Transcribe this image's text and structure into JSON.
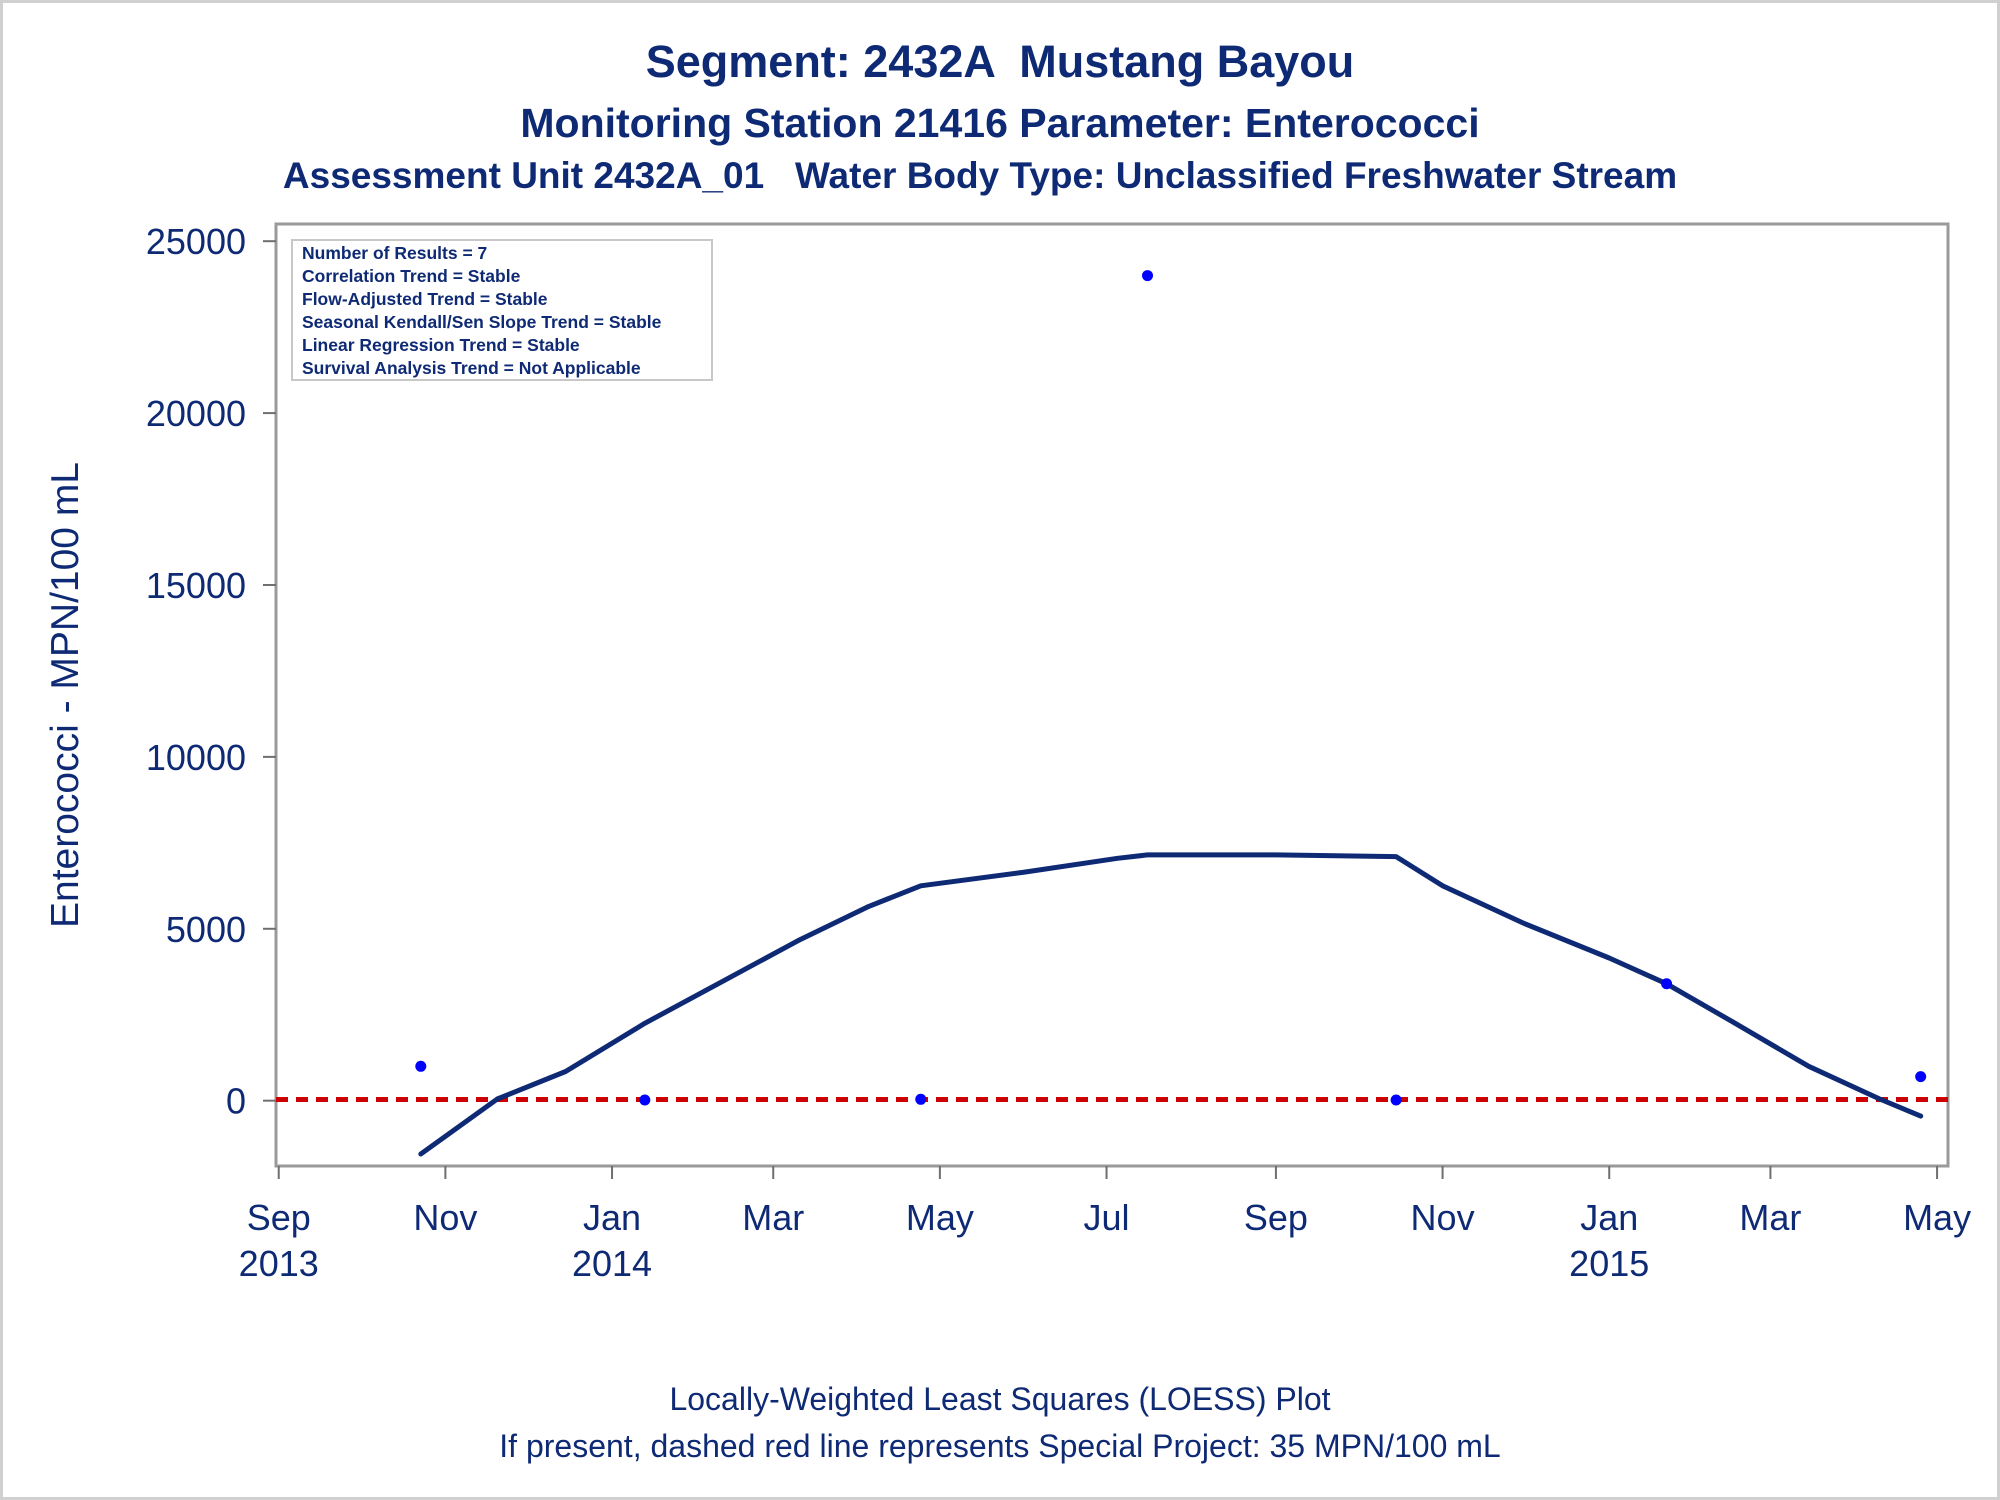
{
  "titles": {
    "line1": "Segment: 2432A  Mustang Bayou",
    "line2": "Monitoring Station 21416 Parameter: Enterococci",
    "line3": "Assessment Unit 2432A_01   Water Body Type: Unclassified Freshwater Stream"
  },
  "footnotes": {
    "line1": "Locally-Weighted Least Squares (LOESS) Plot",
    "line2": "If present, dashed red line represents Special Project: 35 MPN/100 mL"
  },
  "chart_data": {
    "type": "scatter",
    "title": "Segment: 2432A  Mustang Bayou",
    "ylabel": "Enterococci - MPN/100 mL",
    "xlabel": "",
    "ylim": [
      -1900,
      25500
    ],
    "xlim": [
      "2013-08-31",
      "2015-05-05"
    ],
    "yticks": [
      0,
      5000,
      10000,
      15000,
      20000,
      25000
    ],
    "xticks": [
      {
        "date": "2013-09-01",
        "label": "Sep",
        "sublabel": "2013"
      },
      {
        "date": "2013-11-01",
        "label": "Nov",
        "sublabel": ""
      },
      {
        "date": "2014-01-01",
        "label": "Jan",
        "sublabel": "2014"
      },
      {
        "date": "2014-03-01",
        "label": "Mar",
        "sublabel": ""
      },
      {
        "date": "2014-05-01",
        "label": "May",
        "sublabel": ""
      },
      {
        "date": "2014-07-01",
        "label": "Jul",
        "sublabel": ""
      },
      {
        "date": "2014-09-01",
        "label": "Sep",
        "sublabel": ""
      },
      {
        "date": "2014-11-01",
        "label": "Nov",
        "sublabel": ""
      },
      {
        "date": "2015-01-01",
        "label": "Jan",
        "sublabel": "2015"
      },
      {
        "date": "2015-03-01",
        "label": "Mar",
        "sublabel": ""
      },
      {
        "date": "2015-05-01",
        "label": "May",
        "sublabel": ""
      }
    ],
    "grid": false,
    "stats_box": [
      "Number of Results = 7",
      "Correlation Trend = Stable",
      "Flow-Adjusted Trend = Stable",
      "Seasonal Kendall/Sen Slope Trend = Stable",
      "Linear Regression Trend = Stable",
      "Survival Analysis Trend = Not Applicable"
    ],
    "series": [
      {
        "kind": "points",
        "color": "#0000ff",
        "points": [
          {
            "x": "2013-10-23",
            "y": 1000
          },
          {
            "x": "2014-01-13",
            "y": 20
          },
          {
            "x": "2014-04-24",
            "y": 40
          },
          {
            "x": "2014-07-16",
            "y": 24000
          },
          {
            "x": "2014-10-15",
            "y": 20
          },
          {
            "x": "2015-01-22",
            "y": 3400
          },
          {
            "x": "2015-04-25",
            "y": 700
          }
        ]
      },
      {
        "kind": "loess",
        "color": "#0f2a75",
        "points": [
          {
            "x": "2013-10-23",
            "y": -1550
          },
          {
            "x": "2013-11-20",
            "y": 50
          },
          {
            "x": "2013-12-15",
            "y": 850
          },
          {
            "x": "2014-01-13",
            "y": 2250
          },
          {
            "x": "2014-02-10",
            "y": 3450
          },
          {
            "x": "2014-03-10",
            "y": 4650
          },
          {
            "x": "2014-04-05",
            "y": 5650
          },
          {
            "x": "2014-04-24",
            "y": 6250
          },
          {
            "x": "2014-06-01",
            "y": 6650
          },
          {
            "x": "2014-07-05",
            "y": 7050
          },
          {
            "x": "2014-07-16",
            "y": 7150
          },
          {
            "x": "2014-08-01",
            "y": 7150
          },
          {
            "x": "2014-09-01",
            "y": 7150
          },
          {
            "x": "2014-10-15",
            "y": 7100
          },
          {
            "x": "2014-11-01",
            "y": 6250
          },
          {
            "x": "2014-12-01",
            "y": 5150
          },
          {
            "x": "2015-01-01",
            "y": 4150
          },
          {
            "x": "2015-01-22",
            "y": 3400
          },
          {
            "x": "2015-02-15",
            "y": 2300
          },
          {
            "x": "2015-03-15",
            "y": 1000
          },
          {
            "x": "2015-04-10",
            "y": 50
          },
          {
            "x": "2015-04-25",
            "y": -450
          }
        ]
      },
      {
        "kind": "reference",
        "name": "Special Project: 35 MPN/100 mL",
        "color": "#cc0000",
        "y": 35
      }
    ]
  }
}
